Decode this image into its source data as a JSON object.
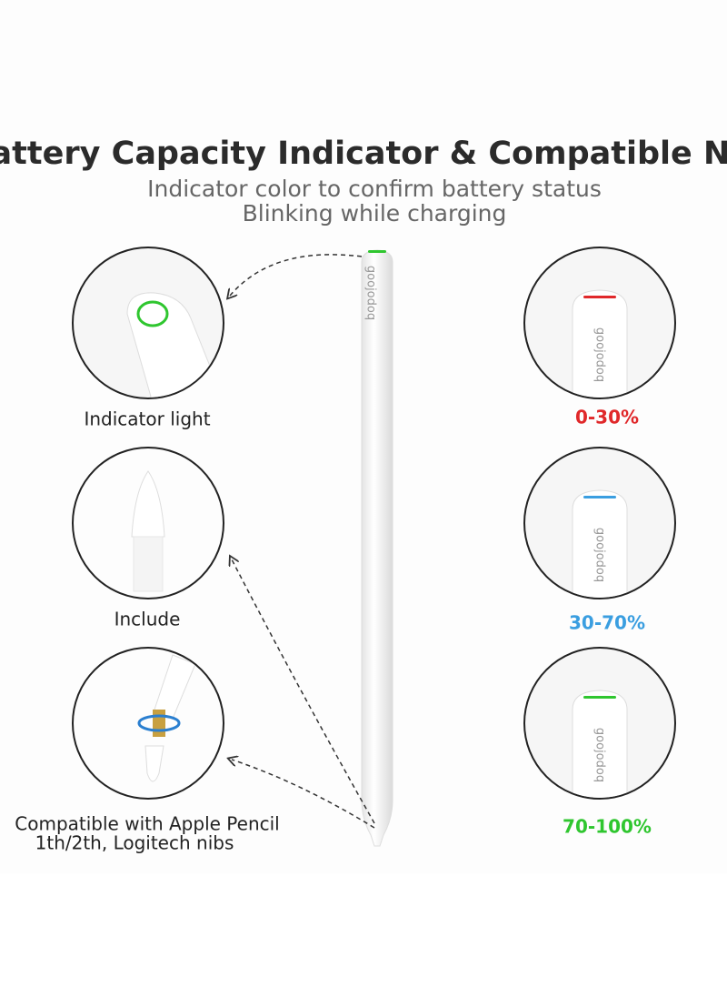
{
  "header": {
    "title": "Battery Capacity Indicator & Compatible Nibs",
    "subtitle": [
      "Indicator color to confirm battery status",
      "Blinking while charging"
    ]
  },
  "brand": "goojodoq",
  "features": [
    {
      "label": [
        "Indicator light"
      ]
    },
    {
      "label": [
        "Include"
      ]
    },
    {
      "label": [
        "Compatible with Apple Pencil",
        "1th/2th, Logitech nibs"
      ]
    }
  ],
  "battery_levels": [
    {
      "label": "0-30%",
      "color": "#e0282a"
    },
    {
      "label": "30-70%",
      "color": "#3a9ee0"
    },
    {
      "label": "70-100%",
      "color": "#2fc62f"
    }
  ]
}
